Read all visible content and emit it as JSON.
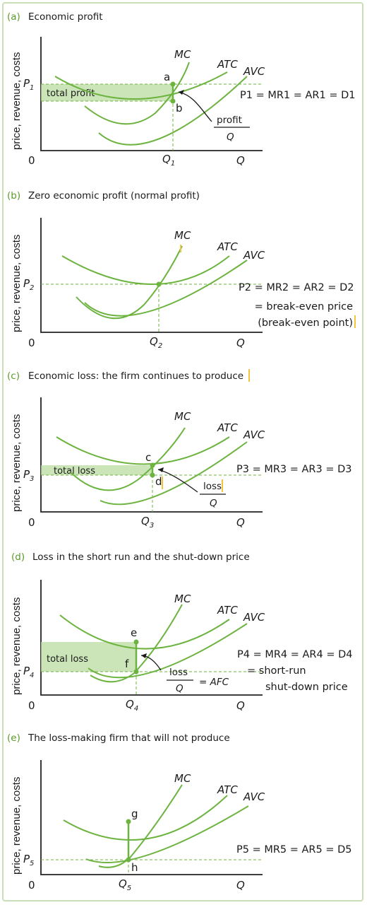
{
  "panels": [
    {
      "letter": "(a)",
      "title": "Economic profit",
      "ylabel": "price, revenue, costs",
      "origin": "0",
      "q_axis": "Q",
      "curves": {
        "mc": "MC",
        "atc": "ATC",
        "avc": "AVC"
      },
      "price": "P",
      "price_sub": "1",
      "qty": "Q",
      "qty_sub": "1",
      "points": [
        "a",
        "b"
      ],
      "area_label": "total profit",
      "eq_lines": [
        "P1 = MR1 = AR1 = D1"
      ],
      "frac_num": "profit",
      "frac_den": "Q"
    },
    {
      "letter": "(b)",
      "title": "Zero economic profit (normal profit)",
      "ylabel": "price, revenue, costs",
      "origin": "0",
      "q_axis": "Q",
      "curves": {
        "mc": "MC",
        "atc": "ATC",
        "avc": "AVC"
      },
      "price": "P",
      "price_sub": "2",
      "qty": "Q",
      "qty_sub": "2",
      "eq_lines": [
        "P2 = MR2 = AR2 = D2",
        "= break-even price",
        "(break-even point)"
      ]
    },
    {
      "letter": "(c)",
      "title": "Economic loss: the firm continues to produce",
      "ylabel": "price, revenue, costs",
      "origin": "0",
      "q_axis": "Q",
      "curves": {
        "mc": "MC",
        "atc": "ATC",
        "avc": "AVC"
      },
      "price": "P",
      "price_sub": "3",
      "qty": "Q",
      "qty_sub": "3",
      "points": [
        "c",
        "d"
      ],
      "area_label": "total loss",
      "eq_lines": [
        "P3 = MR3 = AR3 = D3"
      ],
      "frac_num": "loss",
      "frac_den": "Q"
    },
    {
      "letter": "(d)",
      "title": "Loss in the short run and the shut-down price",
      "ylabel": "price, revenue, costs",
      "origin": "0",
      "q_axis": "Q",
      "curves": {
        "mc": "MC",
        "atc": "ATC",
        "avc": "AVC"
      },
      "price": "P",
      "price_sub": "4",
      "qty": "Q",
      "qty_sub": "4",
      "points": [
        "e",
        "f"
      ],
      "area_label": "total loss",
      "eq_lines": [
        "P4 = MR4 = AR4 = D4",
        "= short-run",
        "shut-down price"
      ],
      "frac_num": "loss",
      "frac_den": "Q",
      "frac_suffix": "= AFC"
    },
    {
      "letter": "(e)",
      "title": "The loss-making firm that will not produce",
      "ylabel": "price, revenue, costs",
      "origin": "0",
      "q_axis": "Q",
      "curves": {
        "mc": "MC",
        "atc": "ATC",
        "avc": "AVC"
      },
      "price": "P",
      "price_sub": "5",
      "qty": "Q",
      "qty_sub": "5",
      "points": [
        "g",
        "h"
      ],
      "eq_lines": [
        "P5 = MR5 = AR5 = D5"
      ]
    }
  ],
  "colors": {
    "curve": "#6cb33f",
    "area": "#b9dca0",
    "frame": "#c9dfb5",
    "highlight": "#f5c342"
  }
}
